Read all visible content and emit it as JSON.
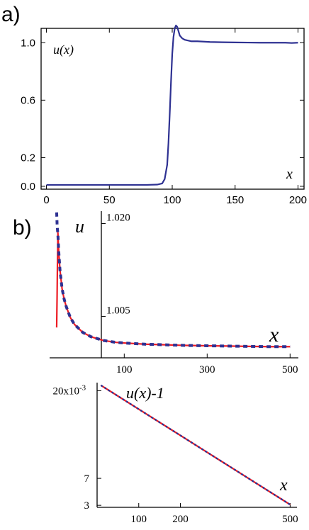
{
  "chart_data": [
    {
      "type": "line",
      "panel_label": "a)",
      "annotation_y": "u(x)",
      "annotation_x": "x",
      "xlim": [
        -2,
        202
      ],
      "ylim": [
        -0.02,
        1.1
      ],
      "xticks": [
        0,
        50,
        100,
        150,
        200
      ],
      "yticks": [
        0.0,
        0.2,
        0.6,
        1.0
      ],
      "ytick_labels": [
        "0.0",
        "0.2",
        "0.6",
        "1.0"
      ],
      "series": [
        {
          "color": "#2e3192",
          "x": [
            0,
            20,
            40,
            60,
            80,
            88,
            92,
            94,
            96,
            97,
            98,
            99,
            100,
            101,
            102,
            103,
            104,
            105,
            106,
            108,
            110,
            115,
            120,
            130,
            140,
            150,
            160,
            170,
            180,
            190,
            195,
            200
          ],
          "y": [
            0.01,
            0.01,
            0.01,
            0.01,
            0.01,
            0.012,
            0.02,
            0.05,
            0.15,
            0.3,
            0.5,
            0.72,
            0.92,
            1.04,
            1.1,
            1.12,
            1.11,
            1.08,
            1.05,
            1.03,
            1.02,
            1.01,
            1.01,
            1.005,
            1.003,
            1.002,
            1.001,
            1.0,
            1.0,
            1.0,
            0.998,
            1.0
          ]
        }
      ]
    },
    {
      "type": "line",
      "panel_label": "b)",
      "annotation_y": "u",
      "annotation_x": "x",
      "xlim": [
        -80,
        520
      ],
      "ylim": [
        0.9983,
        1.022
      ],
      "xticks": [
        100,
        300,
        500
      ],
      "yticks": [
        1.005,
        1.02
      ],
      "ytick_labels": [
        "1.005",
        "1.020"
      ],
      "series": [
        {
          "style": "solid",
          "color": "#ed1c24",
          "x": [
            -63,
            -62,
            -61,
            -60,
            -58,
            -55,
            -50,
            -45,
            -40,
            -30,
            -20,
            0,
            20,
            50,
            80,
            100,
            150,
            200,
            250,
            300,
            350,
            400,
            450,
            500
          ],
          "y": [
            1.0032,
            1.008,
            1.014,
            1.0185,
            1.0155,
            1.0125,
            1.0095,
            1.0078,
            1.0066,
            1.0048,
            1.0037,
            1.0024,
            1.0017,
            1.0011,
            1.0008,
            1.0007,
            1.0005,
            1.0004,
            1.0003,
            1.00025,
            1.0002,
            1.00015,
            1.0001,
            1.0001
          ]
        },
        {
          "style": "dashed",
          "color": "#2e3192",
          "x": [
            -63,
            -62,
            -61,
            -60,
            -58,
            -55,
            -50,
            -45,
            -40,
            -30,
            -20,
            0,
            20,
            50,
            80,
            100,
            150,
            200,
            250,
            300,
            350,
            400,
            450,
            500
          ],
          "y": [
            1.0218,
            1.02,
            1.019,
            1.0182,
            1.0155,
            1.0125,
            1.0095,
            1.0078,
            1.0066,
            1.0048,
            1.0037,
            1.0024,
            1.0017,
            1.0011,
            1.0008,
            1.0007,
            1.0005,
            1.0004,
            1.0003,
            1.00025,
            1.0002,
            1.00015,
            1.0001,
            1.0001
          ]
        }
      ]
    },
    {
      "type": "line",
      "annotation_y": "u(x)-1",
      "annotation_x": "x",
      "xlim": [
        -10,
        518
      ],
      "ylim": [
        2.7,
        21.2
      ],
      "yticks": [
        3,
        7,
        20
      ],
      "ytick_labels": [
        "3",
        "7",
        "20x10"
      ],
      "ytick_sup": "-3",
      "xticks": [
        100,
        200,
        500
      ],
      "xtick_positions": [
        100,
        210,
        500
      ],
      "series": [
        {
          "style": "solid",
          "color": "#ed1c24",
          "x": [
            0,
            500
          ],
          "y": [
            20.8,
            3.1
          ]
        },
        {
          "style": "dashed",
          "color": "#2e3192",
          "x": [
            0,
            500
          ],
          "y": [
            20.8,
            3.1
          ]
        }
      ]
    }
  ]
}
